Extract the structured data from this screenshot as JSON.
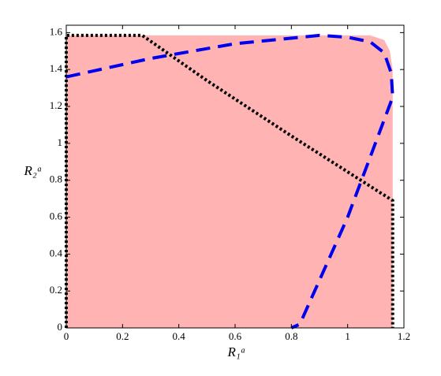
{
  "chart_data": {
    "type": "line",
    "xlabel": "R₁ᵃ",
    "ylabel": "R₂ᵃ",
    "xlim": [
      0,
      1.2
    ],
    "ylim": [
      0,
      1.64
    ],
    "xticks": [
      0,
      0.2,
      0.4,
      0.6,
      0.8,
      1,
      1.2
    ],
    "yticks": [
      0,
      0.2,
      0.4,
      0.6,
      0.8,
      1,
      1.2,
      1.4,
      1.6
    ],
    "series": [
      {
        "color": "#ffb3b3",
        "fill": true,
        "x": [
          0,
          0,
          1.08,
          1.13,
          1.15,
          1.16,
          1.16
        ],
        "values": [
          0,
          1.585,
          1.585,
          1.56,
          1.5,
          1.4,
          0
        ]
      },
      {
        "color": "#000000",
        "dash": "dotted",
        "x": [
          0,
          0,
          0.27,
          0.5,
          0.8,
          1.16,
          1.16
        ],
        "values": [
          0,
          1.585,
          1.585,
          1.34,
          1.04,
          0.69,
          0
        ]
      },
      {
        "color": "#0000ee",
        "dash": "dashed",
        "x": [
          0,
          0.3,
          0.6,
          0.9,
          1.0,
          1.08,
          1.13,
          1.155,
          1.16,
          1.0,
          0.83,
          0.8
        ],
        "values": [
          1.36,
          1.46,
          1.54,
          1.585,
          1.575,
          1.55,
          1.49,
          1.38,
          1.25,
          0.6,
          0.02,
          0
        ]
      }
    ]
  }
}
